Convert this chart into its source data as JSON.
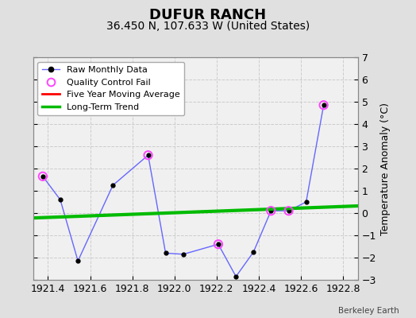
{
  "title": "DUFUR RANCH",
  "subtitle": "36.450 N, 107.633 W (United States)",
  "ylabel": "Temperature Anomaly (°C)",
  "watermark": "Berkeley Earth",
  "xlim": [
    1921.33,
    1922.87
  ],
  "ylim": [
    -3,
    7
  ],
  "yticks": [
    -3,
    -2,
    -1,
    0,
    1,
    2,
    3,
    4,
    5,
    6,
    7
  ],
  "xticks": [
    1921.4,
    1921.6,
    1921.8,
    1922.0,
    1922.2,
    1922.4,
    1922.6,
    1922.8
  ],
  "raw_x": [
    1921.375,
    1921.458,
    1921.542,
    1921.708,
    1921.875,
    1921.958,
    1922.042,
    1922.208,
    1922.292,
    1922.375,
    1922.458,
    1922.542,
    1922.625,
    1922.708
  ],
  "raw_y": [
    1.65,
    0.6,
    -2.15,
    1.25,
    2.6,
    -1.8,
    -1.85,
    -1.4,
    -2.85,
    -1.75,
    0.1,
    0.1,
    0.5,
    4.85
  ],
  "qc_fail_x": [
    1921.375,
    1921.875,
    1922.208,
    1922.458,
    1922.542,
    1922.708
  ],
  "qc_fail_y": [
    1.65,
    2.6,
    -1.4,
    0.1,
    0.1,
    4.85
  ],
  "trend_x": [
    1921.33,
    1922.87
  ],
  "trend_y": [
    -0.22,
    0.32
  ],
  "bg_color": "#e0e0e0",
  "plot_bg_color": "#f0f0f0",
  "raw_line_color": "#6666ff",
  "raw_marker_color": "#000000",
  "qc_marker_color": "#ff44ff",
  "trend_color": "#00bb00",
  "ma_color": "red",
  "grid_color": "#cccccc",
  "title_fontsize": 13,
  "subtitle_fontsize": 10,
  "label_fontsize": 9,
  "tick_fontsize": 9
}
